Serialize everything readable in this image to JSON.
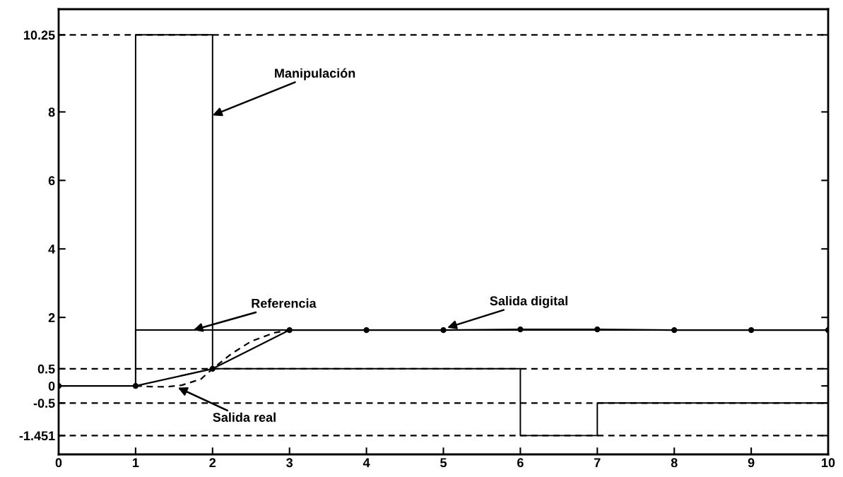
{
  "chart_data": {
    "type": "line",
    "xlim": [
      0,
      10
    ],
    "ylim": [
      -2.0,
      11.0
    ],
    "xticks": [
      0,
      1,
      2,
      3,
      4,
      5,
      6,
      7,
      8,
      9,
      10
    ],
    "yticks": [
      -1.451,
      -0.5,
      0,
      0.5,
      2,
      4,
      6,
      8,
      10.25
    ],
    "grid": false,
    "series": [
      {
        "type": "step",
        "color": "#000000",
        "line_style": "solid",
        "marker": "none",
        "x": [
          0,
          1,
          2,
          6,
          7,
          10
        ],
        "values": [
          0,
          10.25,
          0.5,
          -1.451,
          -0.5,
          -0.5
        ]
      },
      {
        "type": "step",
        "color": "#000000",
        "line_style": "solid",
        "marker": "none",
        "x": [
          0,
          1,
          10
        ],
        "values": [
          0,
          1.63,
          1.63
        ]
      },
      {
        "color": "#000000",
        "line_style": "solid",
        "marker": "circle",
        "x": [
          0,
          1,
          2,
          3,
          4,
          5,
          6,
          7,
          8,
          9,
          10
        ],
        "values": [
          0,
          0,
          0.5,
          1.63,
          1.63,
          1.63,
          1.65,
          1.65,
          1.63,
          1.63,
          1.63
        ]
      },
      {
        "color": "#000000",
        "line_style": "dashed",
        "marker": "none",
        "x": [
          1,
          1.2,
          1.4,
          1.6,
          1.85,
          2,
          2.24,
          2.5,
          2.8,
          3
        ],
        "values": [
          0,
          -0.02,
          -0.03,
          0.02,
          0.2,
          0.5,
          0.93,
          1.3,
          1.55,
          1.63
        ]
      }
    ],
    "ref_lines": [
      {
        "axis": "y",
        "value": 10.25,
        "line_style": "dashed",
        "color": "#000000"
      },
      {
        "axis": "y",
        "value": 0.5,
        "line_style": "dashed",
        "color": "#000000"
      },
      {
        "axis": "y",
        "value": -0.5,
        "line_style": "dashed",
        "color": "#000000"
      },
      {
        "axis": "y",
        "value": -1.451,
        "line_style": "dashed",
        "color": "#000000"
      }
    ],
    "annotations": [
      {
        "text": "Manipulación",
        "x": 2.0,
        "y": 7.9
      },
      {
        "text": "Referencia",
        "x": 1.75,
        "y": 1.63
      },
      {
        "text": "Salida digital",
        "x": 5.05,
        "y": 1.7
      },
      {
        "text": "Salida real",
        "x": 1.55,
        "y": -0.05
      }
    ]
  }
}
